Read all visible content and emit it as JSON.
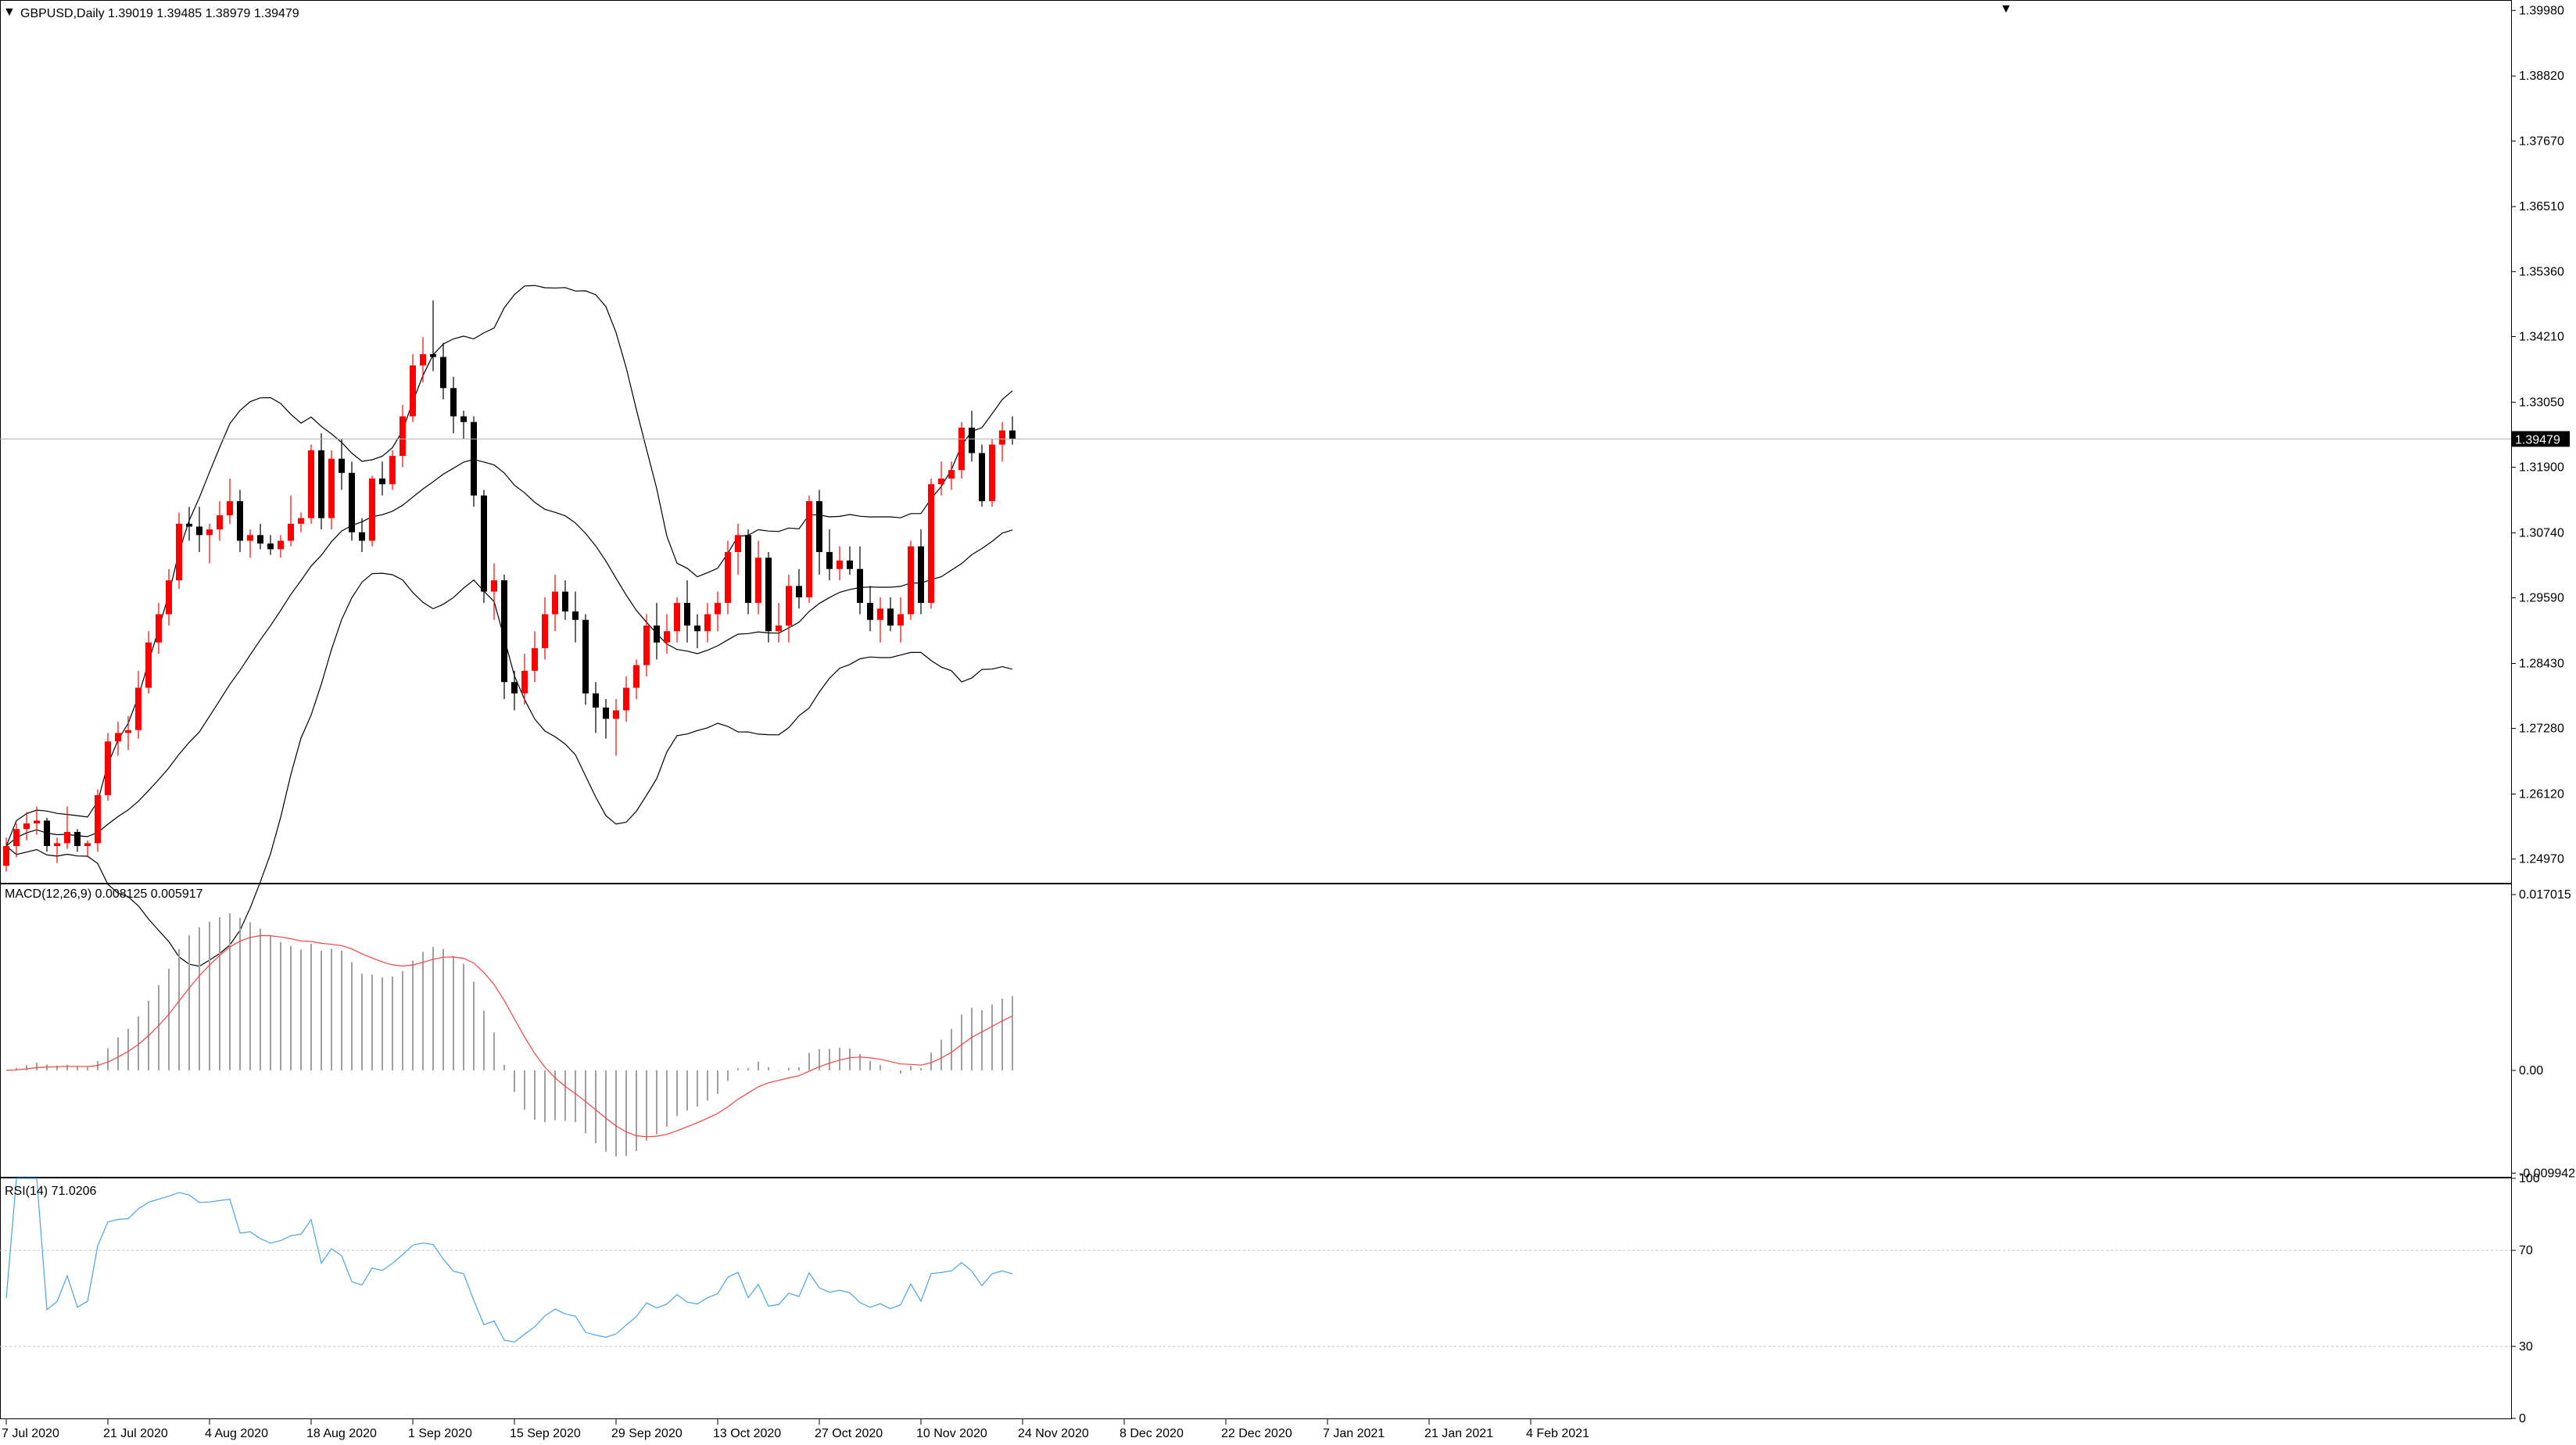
{
  "header": {
    "symbol_line": "GBPUSD,Daily  1.39019 1.39485 1.38979 1.39479",
    "macd_label": "MACD(12,26,9) 0.008125 0.005917",
    "rsi_label": "RSI(14) 71.0206",
    "current_price": "1.39479"
  },
  "colors": {
    "bull": "#ff0000",
    "bear": "#000000",
    "signal": "#ff4040",
    "rsi": "#4aa3ec",
    "bollinger": "#000000",
    "histogram": "#a0a0a0",
    "current_price_box": "#000000"
  },
  "price_axis": {
    "min": 1.2455,
    "max": 1.4015,
    "tick_labels": [
      "1.39980",
      "1.38820",
      "1.37670",
      "1.36510",
      "1.35360",
      "1.34210",
      "1.33050",
      "1.31900",
      "1.30740",
      "1.29590",
      "1.28430",
      "1.27280",
      "1.26120",
      "1.24970"
    ]
  },
  "macd_axis": {
    "min": -0.0103,
    "max": 0.018,
    "tick_labels": [
      "0.017015",
      "0.00",
      "-0.009942"
    ]
  },
  "rsi_axis": {
    "min": 0,
    "max": 100,
    "tick_labels": [
      "100",
      "70",
      "30",
      "0"
    ],
    "levels": [
      70,
      30
    ]
  },
  "time_axis": {
    "labels": [
      {
        "text": "7 Jul 2020",
        "index": 0
      },
      {
        "text": "21 Jul 2020",
        "index": 10
      },
      {
        "text": "4 Aug 2020",
        "index": 20
      },
      {
        "text": "18 Aug 2020",
        "index": 30
      },
      {
        "text": "1 Sep 2020",
        "index": 40
      },
      {
        "text": "15 Sep 2020",
        "index": 50
      },
      {
        "text": "29 Sep 2020",
        "index": 60
      },
      {
        "text": "13 Oct 2020",
        "index": 70
      },
      {
        "text": "27 Oct 2020",
        "index": 80
      },
      {
        "text": "10 Nov 2020",
        "index": 90
      },
      {
        "text": "24 Nov 2020",
        "index": 100
      },
      {
        "text": "8 Dec 2020",
        "index": 110
      },
      {
        "text": "22 Dec 2020",
        "index": 120
      },
      {
        "text": "7 Jan 2021",
        "index": 130
      },
      {
        "text": "21 Jan 2021",
        "index": 140
      },
      {
        "text": "4 Feb 2021",
        "index": 150
      }
    ]
  },
  "chart_data": {
    "type": "candlestick",
    "title": "GBPUSD,Daily",
    "candles": [
      [
        1.2485,
        1.2535,
        1.2475,
        1.252
      ],
      [
        1.252,
        1.256,
        1.25,
        1.255
      ],
      [
        1.255,
        1.258,
        1.253,
        1.256
      ],
      [
        1.256,
        1.259,
        1.254,
        1.2565
      ],
      [
        1.2565,
        1.257,
        1.251,
        1.252
      ],
      [
        1.252,
        1.2535,
        1.249,
        1.2525
      ],
      [
        1.2525,
        1.259,
        1.2515,
        1.2545
      ],
      [
        1.2545,
        1.255,
        1.251,
        1.252
      ],
      [
        1.252,
        1.253,
        1.25,
        1.2525
      ],
      [
        1.2525,
        1.262,
        1.251,
        1.261
      ],
      [
        1.261,
        1.272,
        1.26,
        1.2705
      ],
      [
        1.2705,
        1.274,
        1.268,
        1.272
      ],
      [
        1.272,
        1.275,
        1.269,
        1.2725
      ],
      [
        1.2725,
        1.283,
        1.271,
        1.28
      ],
      [
        1.28,
        1.29,
        1.279,
        1.288
      ],
      [
        1.288,
        1.295,
        1.286,
        1.293
      ],
      [
        1.293,
        1.301,
        1.291,
        1.299
      ],
      [
        1.299,
        1.311,
        1.2975,
        1.309
      ],
      [
        1.309,
        1.312,
        1.306,
        1.3085
      ],
      [
        1.3085,
        1.312,
        1.304,
        1.307
      ],
      [
        1.307,
        1.309,
        1.302,
        1.308
      ],
      [
        1.308,
        1.313,
        1.306,
        1.3105
      ],
      [
        1.3105,
        1.317,
        1.309,
        1.313
      ],
      [
        1.313,
        1.315,
        1.304,
        1.306
      ],
      [
        1.306,
        1.308,
        1.303,
        1.307
      ],
      [
        1.307,
        1.309,
        1.3045,
        1.3055
      ],
      [
        1.3055,
        1.307,
        1.3035,
        1.3045
      ],
      [
        1.3045,
        1.307,
        1.303,
        1.306
      ],
      [
        1.306,
        1.314,
        1.305,
        1.309
      ],
      [
        1.309,
        1.311,
        1.3075,
        1.31
      ],
      [
        1.31,
        1.323,
        1.309,
        1.322
      ],
      [
        1.322,
        1.325,
        1.308,
        1.31
      ],
      [
        1.31,
        1.322,
        1.308,
        1.3205
      ],
      [
        1.3205,
        1.324,
        1.315,
        1.318
      ],
      [
        1.318,
        1.32,
        1.306,
        1.3075
      ],
      [
        1.3075,
        1.31,
        1.304,
        1.306
      ],
      [
        1.306,
        1.3175,
        1.305,
        1.317
      ],
      [
        1.317,
        1.32,
        1.314,
        1.316
      ],
      [
        1.316,
        1.322,
        1.315,
        1.321
      ],
      [
        1.321,
        1.33,
        1.319,
        1.328
      ],
      [
        1.328,
        1.339,
        1.327,
        1.337
      ],
      [
        1.337,
        1.342,
        1.334,
        1.339
      ],
      [
        1.339,
        1.3485,
        1.336,
        1.3385
      ],
      [
        1.3385,
        1.341,
        1.331,
        1.333
      ],
      [
        1.333,
        1.335,
        1.325,
        1.328
      ],
      [
        1.328,
        1.329,
        1.324,
        1.327
      ],
      [
        1.327,
        1.328,
        1.312,
        1.314
      ],
      [
        1.314,
        1.315,
        1.295,
        1.297
      ],
      [
        1.297,
        1.302,
        1.292,
        1.299
      ],
      [
        1.299,
        1.3,
        1.278,
        1.281
      ],
      [
        1.281,
        1.283,
        1.276,
        1.279
      ],
      [
        1.279,
        1.286,
        1.277,
        1.283
      ],
      [
        1.283,
        1.29,
        1.281,
        1.287
      ],
      [
        1.287,
        1.296,
        1.285,
        1.293
      ],
      [
        1.293,
        1.3,
        1.29,
        1.297
      ],
      [
        1.297,
        1.299,
        1.292,
        1.2935
      ],
      [
        1.2935,
        1.297,
        1.288,
        1.292
      ],
      [
        1.292,
        1.293,
        1.277,
        1.279
      ],
      [
        1.279,
        1.281,
        1.272,
        1.2765
      ],
      [
        1.2765,
        1.278,
        1.271,
        1.2745
      ],
      [
        1.2745,
        1.278,
        1.268,
        1.276
      ],
      [
        1.276,
        1.282,
        1.274,
        1.28
      ],
      [
        1.28,
        1.285,
        1.278,
        1.284
      ],
      [
        1.284,
        1.293,
        1.282,
        1.291
      ],
      [
        1.291,
        1.295,
        1.285,
        1.288
      ],
      [
        1.288,
        1.293,
        1.286,
        1.29
      ],
      [
        1.29,
        1.296,
        1.288,
        1.295
      ],
      [
        1.295,
        1.299,
        1.288,
        1.291
      ],
      [
        1.291,
        1.293,
        1.287,
        1.29
      ],
      [
        1.29,
        1.295,
        1.288,
        1.293
      ],
      [
        1.293,
        1.297,
        1.29,
        1.295
      ],
      [
        1.295,
        1.306,
        1.293,
        1.304
      ],
      [
        1.304,
        1.309,
        1.3,
        1.307
      ],
      [
        1.307,
        1.308,
        1.293,
        1.295
      ],
      [
        1.295,
        1.306,
        1.293,
        1.303
      ],
      [
        1.303,
        1.304,
        1.288,
        1.29
      ],
      [
        1.29,
        1.295,
        1.288,
        1.291
      ],
      [
        1.291,
        1.3,
        1.288,
        1.298
      ],
      [
        1.298,
        1.301,
        1.294,
        1.296
      ],
      [
        1.296,
        1.314,
        1.295,
        1.313
      ],
      [
        1.313,
        1.315,
        1.3,
        1.304
      ],
      [
        1.304,
        1.308,
        1.299,
        1.301
      ],
      [
        1.301,
        1.305,
        1.299,
        1.3025
      ],
      [
        1.3025,
        1.305,
        1.3,
        1.301
      ],
      [
        1.301,
        1.305,
        1.293,
        1.295
      ],
      [
        1.295,
        1.298,
        1.29,
        1.292
      ],
      [
        1.292,
        1.296,
        1.288,
        1.294
      ],
      [
        1.294,
        1.296,
        1.29,
        1.291
      ],
      [
        1.291,
        1.296,
        1.288,
        1.293
      ],
      [
        1.293,
        1.306,
        1.292,
        1.305
      ],
      [
        1.305,
        1.308,
        1.293,
        1.295
      ],
      [
        1.295,
        1.317,
        1.294,
        1.316
      ],
      [
        1.316,
        1.32,
        1.314,
        1.317
      ],
      [
        1.317,
        1.32,
        1.315,
        1.3185
      ],
      [
        1.3185,
        1.327,
        1.317,
        1.326
      ],
      [
        1.326,
        1.329,
        1.32,
        1.3215
      ],
      [
        1.3215,
        1.323,
        1.312,
        1.313
      ],
      [
        1.313,
        1.324,
        1.312,
        1.323
      ],
      [
        1.323,
        1.327,
        1.32,
        1.3255
      ],
      [
        1.3255,
        1.328,
        1.323,
        1.324
      ]
    ],
    "bollinger": {
      "period": 20
    },
    "macd": {
      "fast": 12,
      "slow": 26,
      "signal": 9,
      "last_main": 0.008125,
      "last_signal": 0.005917
    },
    "rsi": {
      "period": 14,
      "last": 71.0206
    }
  }
}
